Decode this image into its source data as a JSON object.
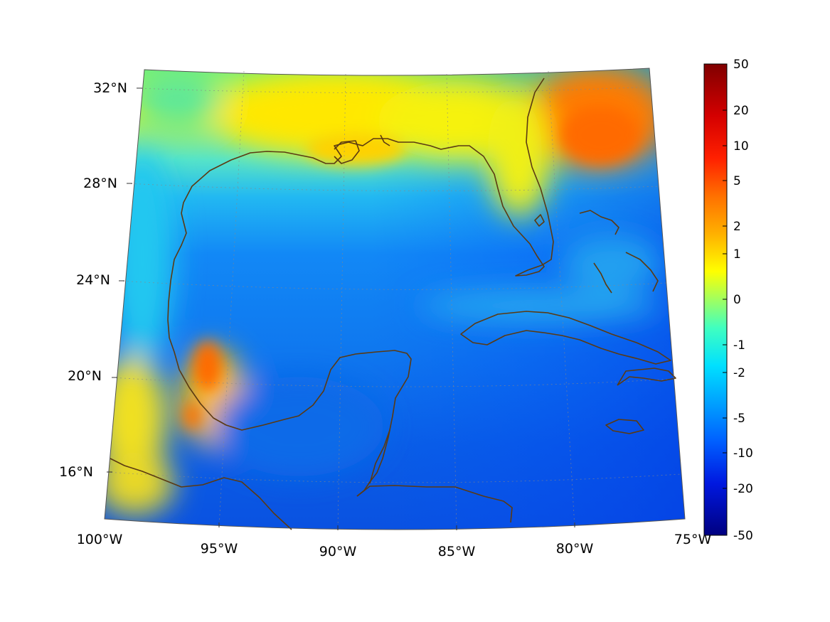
{
  "map": {
    "projection": "Lambert conformal conic",
    "region": "Gulf of Mexico and Caribbean",
    "lat_labels": [
      "32°N",
      "28°N",
      "24°N",
      "20°N",
      "16°N"
    ],
    "lon_labels": [
      "100°W",
      "95°W",
      "90°W",
      "85°W",
      "80°W",
      "75°W"
    ],
    "coastline_color": "#5b3a12",
    "grid": "dotted"
  },
  "colorbar": {
    "colormap": "jet",
    "orientation": "vertical",
    "placement": "right",
    "ticks": [
      "50",
      "20",
      "10",
      "5",
      "2",
      "1",
      "0",
      "-1",
      "-2",
      "-5",
      "-10",
      "-20",
      "-50"
    ]
  }
}
